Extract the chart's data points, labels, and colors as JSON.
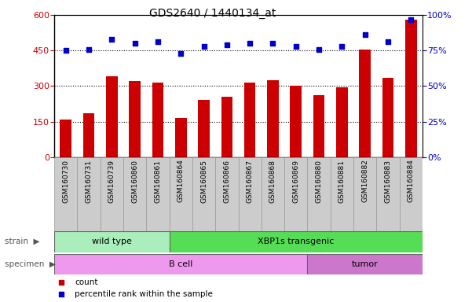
{
  "title": "GDS2640 / 1440134_at",
  "samples": [
    "GSM160730",
    "GSM160731",
    "GSM160739",
    "GSM160860",
    "GSM160861",
    "GSM160864",
    "GSM160865",
    "GSM160866",
    "GSM160867",
    "GSM160868",
    "GSM160869",
    "GSM160880",
    "GSM160881",
    "GSM160882",
    "GSM160883",
    "GSM160884"
  ],
  "counts": [
    160,
    185,
    340,
    320,
    315,
    165,
    240,
    255,
    315,
    325,
    300,
    260,
    295,
    455,
    335,
    580
  ],
  "percentiles": [
    75,
    76,
    83,
    80,
    81,
    73,
    78,
    79,
    80,
    80,
    78,
    76,
    78,
    86,
    81,
    97
  ],
  "ylim_left": [
    0,
    600
  ],
  "ylim_right": [
    0,
    100
  ],
  "yticks_left": [
    0,
    150,
    300,
    450,
    600
  ],
  "yticks_right": [
    0,
    25,
    50,
    75,
    100
  ],
  "bar_color": "#cc0000",
  "dot_color": "#0000cc",
  "grid_color": "#000000",
  "strain_groups": [
    {
      "label": "wild type",
      "start": 0,
      "end": 5,
      "color": "#aaeebb"
    },
    {
      "label": "XBP1s transgenic",
      "start": 5,
      "end": 16,
      "color": "#55dd55"
    }
  ],
  "specimen_groups": [
    {
      "label": "B cell",
      "start": 0,
      "end": 11,
      "color": "#ee99ee"
    },
    {
      "label": "tumor",
      "start": 11,
      "end": 16,
      "color": "#cc77cc"
    }
  ],
  "legend_items": [
    {
      "label": "count",
      "color": "#cc0000"
    },
    {
      "label": "percentile rank within the sample",
      "color": "#0000cc"
    }
  ],
  "background_color": "#ffffff",
  "plot_bg_color": "#ffffff",
  "xtick_bg_color": "#cccccc"
}
